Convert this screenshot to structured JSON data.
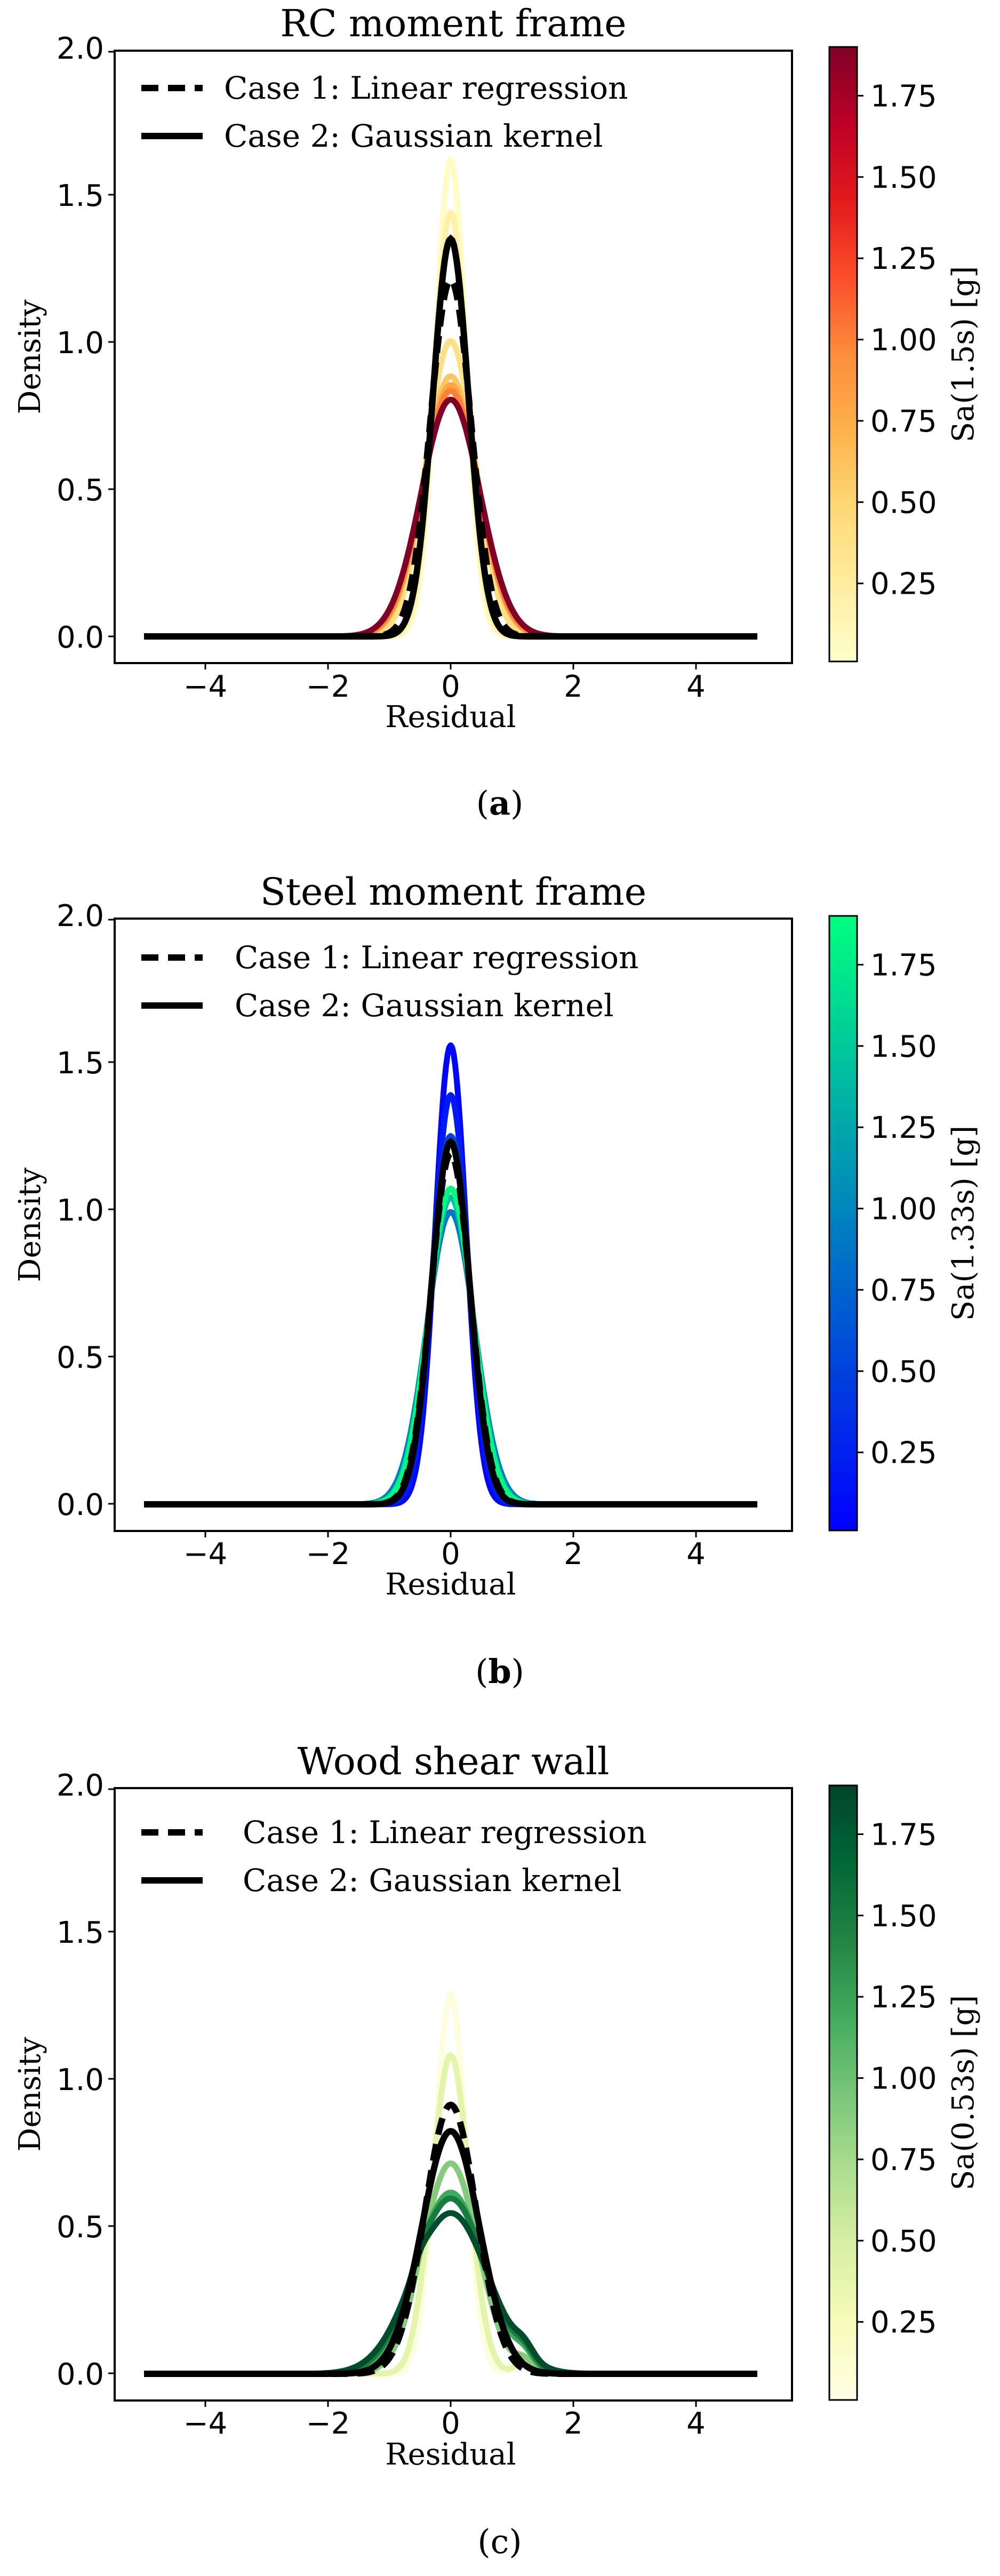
{
  "chart_data": [
    {
      "type": "line",
      "title": "RC moment frame",
      "xlabel": "Residual",
      "ylabel": "Density",
      "xlim": [
        -5,
        5
      ],
      "ylim": [
        0,
        2.0
      ],
      "xticks": [
        "−4",
        "−2",
        "0",
        "2",
        "4"
      ],
      "yticks": [
        "0.0",
        "0.5",
        "1.0",
        "1.5",
        "2.0"
      ],
      "caption_pre": "(",
      "caption_letter": "a",
      "caption_post": ")",
      "caption_bold": true,
      "colorbar": {
        "label": "Sa(1.5s) [g]",
        "range": [
          0.01,
          1.9
        ],
        "ticks": [
          "0.25",
          "0.50",
          "0.75",
          "1.00",
          "1.25",
          "1.50",
          "1.75"
        ],
        "tick_values": [
          0.25,
          0.5,
          0.75,
          1.0,
          1.25,
          1.5,
          1.75
        ],
        "colormap": "YlOrRd",
        "stops": [
          "#ffffcc",
          "#ffeda0",
          "#fed976",
          "#feb24c",
          "#fd8d3c",
          "#fc4e2a",
          "#e31a1c",
          "#bd0026",
          "#800026"
        ]
      },
      "legend": {
        "position": "top-left",
        "entries": [
          {
            "label": "Case 1: Linear regression",
            "style": "dashed"
          },
          {
            "label": "Case 2: Gaussian kernel",
            "style": "solid"
          }
        ]
      },
      "grid": false,
      "colored_curves": [
        {
          "sa": 0.05,
          "peak": 1.63,
          "sigma": 0.245
        },
        {
          "sa": 0.2,
          "peak": 1.45,
          "sigma": 0.27
        },
        {
          "sa": 0.4,
          "peak": 1.01,
          "sigma": 0.39
        },
        {
          "sa": 0.6,
          "peak": 0.89,
          "sigma": 0.44
        },
        {
          "sa": 0.8,
          "peak": 0.86,
          "sigma": 0.45
        },
        {
          "sa": 1.0,
          "peak": 0.84,
          "sigma": 0.46
        },
        {
          "sa": 1.9,
          "peak": 0.81,
          "sigma": 0.48
        }
      ],
      "black_curves": [
        {
          "style": "dashed",
          "peak": 1.22,
          "sigma": 0.33
        },
        {
          "style": "solid",
          "peak": 1.36,
          "sigma": 0.29
        }
      ]
    },
    {
      "type": "line",
      "title": "Steel moment frame",
      "xlabel": "Residual",
      "ylabel": "Density",
      "xlim": [
        -5,
        5
      ],
      "ylim": [
        0,
        2.0
      ],
      "xticks": [
        "−4",
        "−2",
        "0",
        "2",
        "4"
      ],
      "yticks": [
        "0.0",
        "0.5",
        "1.0",
        "1.5",
        "2.0"
      ],
      "caption_pre": "(",
      "caption_letter": "b",
      "caption_post": ")",
      "caption_bold": true,
      "colorbar": {
        "label": "Sa(1.33s) [g]",
        "range": [
          0.01,
          1.9
        ],
        "ticks": [
          "0.25",
          "0.50",
          "0.75",
          "1.00",
          "1.25",
          "1.50",
          "1.75"
        ],
        "tick_values": [
          0.25,
          0.5,
          0.75,
          1.0,
          1.25,
          1.5,
          1.75
        ],
        "colormap": "winter",
        "stops": [
          "#0000ff",
          "#0040df",
          "#0080bf",
          "#00bf9f",
          "#00ff80"
        ]
      },
      "legend": {
        "position": "top-left",
        "entries": [
          {
            "label": "Case 1: Linear regression",
            "style": "dashed"
          },
          {
            "label": "Case 2: Gaussian kernel",
            "style": "solid"
          }
        ]
      },
      "grid": false,
      "colored_curves": [
        {
          "sa": 0.05,
          "peak": 1.57,
          "sigma": 0.25
        },
        {
          "sa": 0.2,
          "peak": 1.4,
          "sigma": 0.28
        },
        {
          "sa": 0.5,
          "peak": 1.26,
          "sigma": 0.31
        },
        {
          "sa": 0.9,
          "peak": 1.0,
          "sigma": 0.39
        },
        {
          "sa": 1.4,
          "peak": 1.05,
          "sigma": 0.37
        },
        {
          "sa": 1.85,
          "peak": 1.08,
          "sigma": 0.36
        }
      ],
      "black_curves": [
        {
          "style": "dashed",
          "peak": 1.2,
          "sigma": 0.32
        },
        {
          "style": "solid",
          "peak": 1.24,
          "sigma": 0.31
        }
      ]
    },
    {
      "type": "line",
      "title": "Wood shear wall",
      "xlabel": "Residual",
      "ylabel": "Density",
      "xlim": [
        -5,
        5
      ],
      "ylim": [
        0,
        2.0
      ],
      "xticks": [
        "−4",
        "−2",
        "0",
        "2",
        "4"
      ],
      "yticks": [
        "0.0",
        "0.5",
        "1.0",
        "1.5",
        "2.0"
      ],
      "caption_pre": "(",
      "caption_letter": "c",
      "caption_post": ")",
      "caption_bold": false,
      "colorbar": {
        "label": "Sa(0.53s) [g]",
        "range": [
          0.01,
          1.9
        ],
        "ticks": [
          "0.25",
          "0.50",
          "0.75",
          "1.00",
          "1.25",
          "1.50",
          "1.75"
        ],
        "tick_values": [
          0.25,
          0.5,
          0.75,
          1.0,
          1.25,
          1.5,
          1.75
        ],
        "colormap": "YlGn",
        "stops": [
          "#ffffe5",
          "#f7fcb9",
          "#d9f0a3",
          "#addd8e",
          "#78c679",
          "#41ab5d",
          "#238443",
          "#006837",
          "#004529"
        ]
      },
      "legend": {
        "position": "top-left",
        "entries": [
          {
            "label": "Case 1: Linear regression",
            "style": "dashed"
          },
          {
            "label": "Case 2: Gaussian kernel",
            "style": "solid"
          }
        ]
      },
      "grid": false,
      "colored_curves": [
        {
          "sa": 0.05,
          "peak": 1.3,
          "sigma": 0.25
        },
        {
          "sa": 0.4,
          "peak": 1.09,
          "sigma": 0.3
        },
        {
          "sa": 0.9,
          "peak": 0.72,
          "sigma": 0.45
        },
        {
          "sa": 1.2,
          "peak": 0.62,
          "sigma": 0.55
        },
        {
          "sa": 1.5,
          "peak": 0.6,
          "sigma": 0.58
        },
        {
          "sa": 1.85,
          "peak": 0.55,
          "sigma": 0.62
        }
      ],
      "black_curves": [
        {
          "style": "dashed",
          "peak": 0.92,
          "sigma": 0.42
        },
        {
          "style": "solid",
          "peak": 0.83,
          "sigma": 0.47
        }
      ]
    }
  ]
}
